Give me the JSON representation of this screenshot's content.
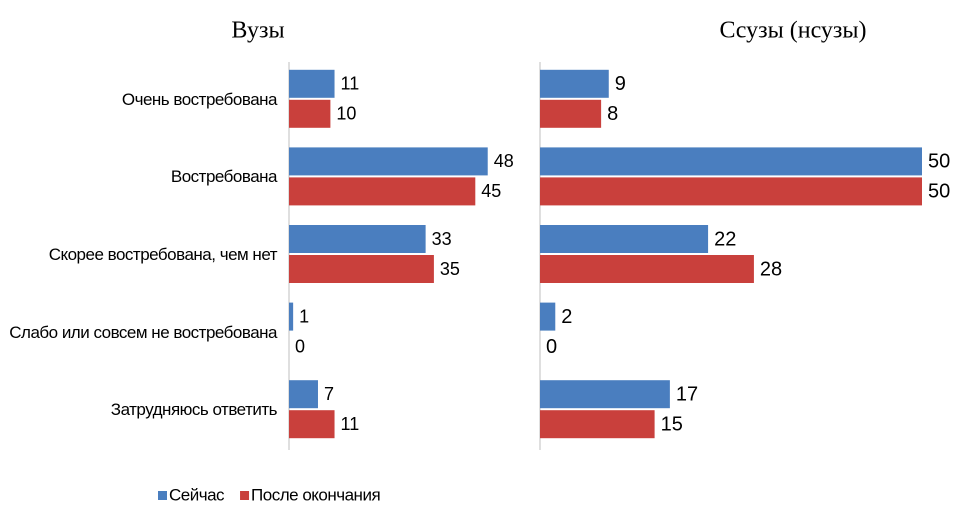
{
  "chart_data": [
    {
      "type": "bar",
      "orientation": "horizontal",
      "title": "Вузы",
      "categories": [
        "Очень востребована",
        "Востребована",
        "Скорее востребована, чем нет",
        "Слабо или совсем не востребована",
        "Затрудняюсь ответить"
      ],
      "series": [
        {
          "name": "Сейчас",
          "color": "#4a7ebf",
          "values": [
            11,
            48,
            33,
            1,
            7
          ]
        },
        {
          "name": "После окончания",
          "color": "#c9403c",
          "values": [
            10,
            45,
            35,
            0,
            11
          ]
        }
      ],
      "xlim": [
        0,
        50
      ],
      "legend": "bottom"
    },
    {
      "type": "bar",
      "orientation": "horizontal",
      "title": "Ссузы (нсузы)",
      "series": [
        {
          "color": "#4a7ebf",
          "values": [
            9,
            50,
            22,
            2,
            17
          ]
        },
        {
          "color": "#c9403c",
          "values": [
            8,
            50,
            28,
            0,
            15
          ]
        }
      ],
      "xlim": [
        0,
        50
      ]
    }
  ]
}
